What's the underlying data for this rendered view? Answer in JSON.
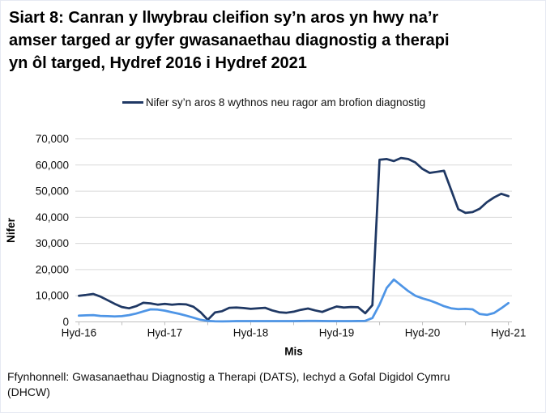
{
  "header": {
    "title_lines": [
      "Siart 8: Canran y llwybrau cleifion sy’n aros yn hwy na’r",
      "amser targed ar gyfer gwasanaethau diagnostig a therapi",
      "yn ôl targed, Hydref 2016 i Hydref 2021"
    ]
  },
  "legend": {
    "label": "Nifer sy’n aros 8 wythnos neu ragor am brofion diagnostig",
    "marker_color": "#1f3864"
  },
  "chart_data": {
    "type": "line",
    "title": "Siart 8: Canran y llwybrau cleifion sy’n aros yn hwy na’r amser targed ar gyfer gwasanaethau diagnostig a therapi yn ôl targed, Hydref 2016 i Hydref 2021",
    "xlabel": "Mis",
    "ylabel": "Nifer",
    "ylim": [
      0,
      70000
    ],
    "y_tick_values": [
      0,
      10000,
      20000,
      30000,
      40000,
      50000,
      60000,
      70000
    ],
    "y_tick_labels": [
      "0",
      "10,000",
      "20,000",
      "30,000",
      "40,000",
      "50,000",
      "60,000",
      "70,000"
    ],
    "x_tick_labels": [
      "Hyd-16",
      "Hyd-17",
      "Hyd-18",
      "Hyd-19",
      "Hyd-20",
      "Hyd-21"
    ],
    "x_label_month_positions": [
      0,
      12,
      24,
      36,
      48,
      60
    ],
    "minor_tick_every_months": 6,
    "n_points": 61,
    "grid": true,
    "legend_position": "top",
    "colors": {
      "grid": "#d9d9d9",
      "axis": "#bfbfbf",
      "tick_text": "#111111"
    },
    "series": [
      {
        "name": "Nifer sy’n aros 8 wythnos neu ragor am brofion diagnostig",
        "color": "#1f3864",
        "in_legend": true,
        "values": [
          10000,
          10300,
          10700,
          9700,
          8300,
          6900,
          5700,
          5200,
          6000,
          7300,
          7100,
          6600,
          6900,
          6600,
          6800,
          6700,
          5800,
          3700,
          800,
          3600,
          4100,
          5400,
          5500,
          5300,
          5000,
          5200,
          5400,
          4400,
          3700,
          3500,
          3900,
          4600,
          5100,
          4400,
          3800,
          4900,
          5900,
          5500,
          5700,
          5600,
          3300,
          6400,
          62000,
          62300,
          61500,
          62700,
          62300,
          61000,
          58500,
          57000,
          57400,
          57800,
          50500,
          43100,
          41700,
          42000,
          43300,
          45800,
          47600,
          49000,
          48100
        ]
      },
      {
        "name": "",
        "color": "#4e95e6",
        "in_legend": false,
        "values": [
          2400,
          2500,
          2600,
          2300,
          2200,
          2100,
          2200,
          2600,
          3200,
          4000,
          4800,
          4700,
          4300,
          3700,
          3100,
          2400,
          1600,
          800,
          400,
          250,
          200,
          250,
          300,
          300,
          300,
          300,
          300,
          300,
          300,
          300,
          300,
          350,
          400,
          400,
          350,
          300,
          300,
          300,
          300,
          350,
          400,
          1500,
          6600,
          13000,
          16200,
          14000,
          11800,
          10000,
          9000,
          8200,
          7200,
          6000,
          5200,
          4900,
          5000,
          4800,
          3000,
          2700,
          3400,
          5200,
          7200
        ]
      }
    ]
  },
  "footer": {
    "source_lines": [
      "Ffynhonnell: Gwasanaethau Diagnostig a Therapi (DATS), Iechyd a Gofal Digidol Cymru",
      "(DHCW)"
    ]
  }
}
